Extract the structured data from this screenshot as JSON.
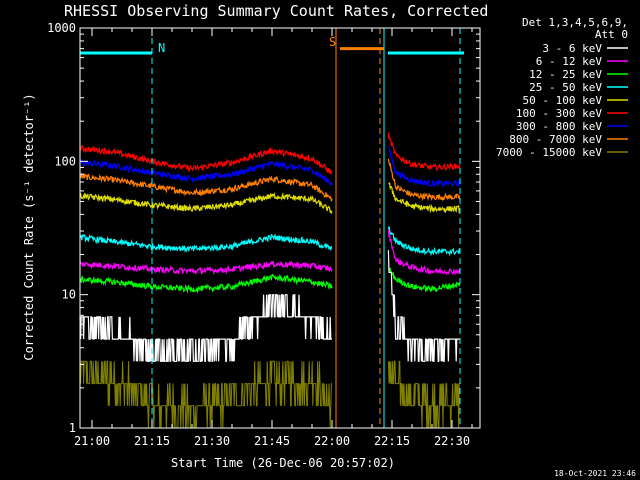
{
  "chart_data": {
    "type": "line",
    "title": "RHESSI Observing Summary Count Rates, Corrected",
    "xlabel": "Start Time (26-Dec-06 20:57:02)",
    "ylabel": "Corrected Count Rate (s⁻¹ detector⁻¹)",
    "y_scale": "log",
    "ylim": [
      1,
      1000
    ],
    "y_tick_labels": [
      "1",
      "10",
      "100",
      "1000"
    ],
    "xlim_minutes_from_2100": [
      -3,
      97
    ],
    "x_tick_labels": [
      "21:00",
      "21:15",
      "21:30",
      "21:45",
      "22:00",
      "22:15",
      "22:30"
    ],
    "legend_header": [
      "Det 1,3,4,5,6,9,",
      "Att 0"
    ],
    "legend_position": "top-right outside plot",
    "grid": false,
    "data_gap": {
      "start": "22:01",
      "end": "22:14"
    },
    "annotations": [
      {
        "text": "N",
        "color": "#00ffff",
        "start": "20:57",
        "end": "21:15",
        "level": 650
      },
      {
        "text": "S",
        "color": "#ff7f00",
        "start": "22:02",
        "end": "22:13",
        "level": 700
      }
    ],
    "vertical_markers": [
      {
        "time": "21:15",
        "color": "#00ffff",
        "style": "dashed"
      },
      {
        "time": "22:13",
        "color": "#00ffff",
        "style": "solid"
      },
      {
        "time": "22:32",
        "color": "#00ffff",
        "style": "dashed"
      },
      {
        "time": "22:01",
        "color": "#ff7f00",
        "style": "solid"
      },
      {
        "time": "22:12",
        "color": "#ff7f00",
        "style": "dashed"
      }
    ],
    "x_sample_times": [
      "20:57",
      "21:05",
      "21:15",
      "21:25",
      "21:35",
      "21:45",
      "21:55",
      "22:00",
      "22:14",
      "22:16",
      "22:20",
      "22:25",
      "22:32"
    ],
    "series": [
      {
        "name": "3 - 6 keV",
        "color": "#ffffff",
        "values": [
          6.2,
          5.5,
          3.8,
          3.6,
          4.3,
          8.5,
          6.5,
          4.5,
          24,
          5.5,
          4.2,
          4.0,
          4.5
        ]
      },
      {
        "name": "6 - 12 keV",
        "color": "#ff00ff",
        "values": [
          17,
          16.5,
          15.5,
          15,
          15.5,
          17,
          16.5,
          15.5,
          30,
          18,
          16,
          15,
          15
        ]
      },
      {
        "name": "12 - 25 keV",
        "color": "#00ff00",
        "values": [
          13,
          12.5,
          11.5,
          11,
          11.5,
          13.5,
          12.5,
          11.5,
          16,
          13,
          11.5,
          11,
          12
        ]
      },
      {
        "name": "25 - 50 keV",
        "color": "#00ffff",
        "values": [
          27,
          25,
          23,
          22,
          23,
          27,
          25,
          22,
          32,
          25,
          22,
          21,
          21
        ]
      },
      {
        "name": "50 - 100 keV",
        "color": "#dddd00",
        "values": [
          55,
          52,
          47,
          44,
          47,
          55,
          52,
          42,
          70,
          52,
          46,
          44,
          44
        ]
      },
      {
        "name": "100 - 300 keV",
        "color": "#ff0000",
        "values": [
          125,
          118,
          100,
          88,
          98,
          120,
          105,
          82,
          160,
          110,
          95,
          90,
          92
        ]
      },
      {
        "name": "300 - 800 keV",
        "color": "#0000ff",
        "values": [
          98,
          93,
          82,
          74,
          80,
          96,
          86,
          68,
          130,
          82,
          72,
          68,
          68
        ]
      },
      {
        "name": "800 - 7000 keV",
        "color": "#ff7f00",
        "values": [
          77,
          73,
          65,
          58,
          62,
          74,
          66,
          52,
          105,
          64,
          56,
          54,
          54
        ]
      },
      {
        "name": "7000 - 15000 keV",
        "color": "#808000",
        "values": [
          2.5,
          2.3,
          1.5,
          1.4,
          1.6,
          2.3,
          2.2,
          1.6,
          3.0,
          2.0,
          1.7,
          1.5,
          1.6
        ]
      }
    ],
    "timestamp": "18-Oct-2021 23:46"
  }
}
